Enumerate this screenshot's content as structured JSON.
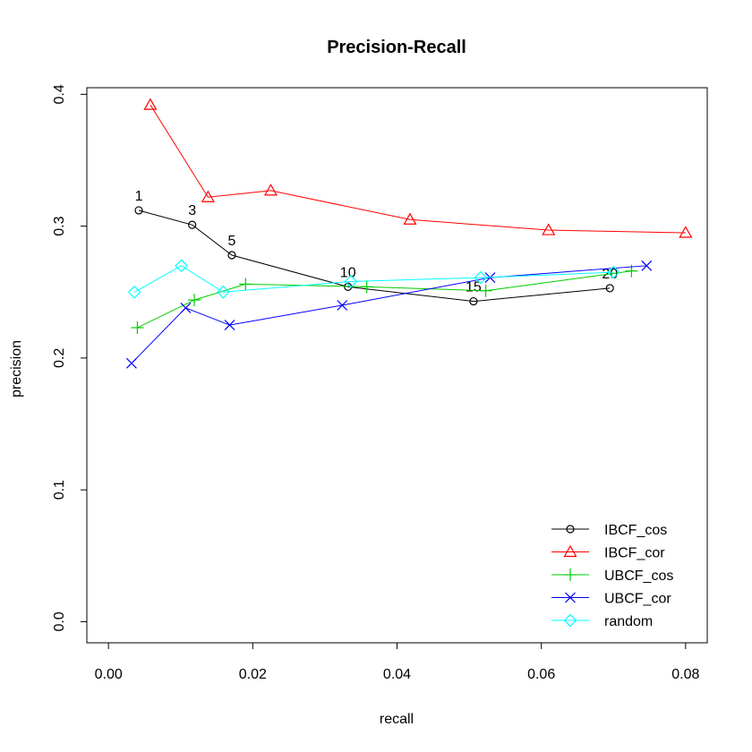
{
  "chart_data": {
    "type": "line",
    "title": "Precision-Recall",
    "xlabel": "recall",
    "ylabel": "precision",
    "xlim": [
      -0.003,
      0.083
    ],
    "ylim": [
      -0.016,
      0.405
    ],
    "x_ticks": [
      0.0,
      0.02,
      0.04,
      0.06,
      0.08
    ],
    "x_tick_labels": [
      "0.00",
      "0.02",
      "0.04",
      "0.06",
      "0.08"
    ],
    "y_ticks": [
      0.0,
      0.1,
      0.2,
      0.3,
      0.4
    ],
    "y_tick_labels": [
      "0.0",
      "0.1",
      "0.2",
      "0.3",
      "0.4"
    ],
    "grid": false,
    "legend_position": "bottom-right",
    "series": [
      {
        "name": "IBCF_cos",
        "color": "#000000",
        "marker": "circle",
        "x": [
          0.0042,
          0.0116,
          0.0171,
          0.0332,
          0.0506,
          0.0695
        ],
        "y": [
          0.312,
          0.301,
          0.278,
          0.254,
          0.243,
          0.253
        ],
        "point_labels": [
          "1",
          "3",
          "5",
          "10",
          "15",
          "20"
        ]
      },
      {
        "name": "IBCF_cor",
        "color": "#ff0000",
        "marker": "triangle",
        "x": [
          0.0058,
          0.0138,
          0.0225,
          0.0418,
          0.061,
          0.08
        ],
        "y": [
          0.392,
          0.322,
          0.327,
          0.305,
          0.297,
          0.295
        ]
      },
      {
        "name": "UBCF_cos",
        "color": "#00cd00",
        "marker": "plus",
        "x": [
          0.004,
          0.0119,
          0.019,
          0.0358,
          0.0523,
          0.0725
        ],
        "y": [
          0.223,
          0.244,
          0.256,
          0.254,
          0.251,
          0.266
        ]
      },
      {
        "name": "UBCF_cor",
        "color": "#0000ff",
        "marker": "cross",
        "x": [
          0.0032,
          0.0107,
          0.0168,
          0.0324,
          0.0529,
          0.0746
        ],
        "y": [
          0.196,
          0.238,
          0.225,
          0.24,
          0.261,
          0.27
        ]
      },
      {
        "name": "random",
        "color": "#00ffff",
        "marker": "diamond",
        "x": [
          0.0036,
          0.0101,
          0.0159,
          0.0336,
          0.0516,
          0.07
        ],
        "y": [
          0.25,
          0.27,
          0.25,
          0.258,
          0.261,
          0.265
        ]
      }
    ]
  }
}
